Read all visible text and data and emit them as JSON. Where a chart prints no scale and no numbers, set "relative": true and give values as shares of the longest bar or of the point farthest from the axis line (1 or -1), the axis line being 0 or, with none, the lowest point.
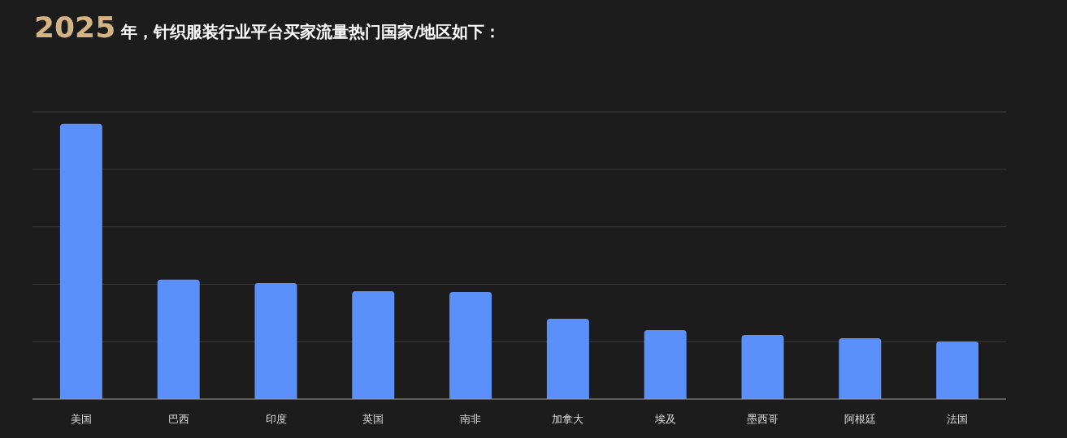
{
  "chart_data": {
    "type": "bar",
    "title": "**2025** 年，针织服装行业平台买家流量热门国家/地区如下：",
    "categories": [
      "美国",
      "巴西",
      "印度",
      "英国",
      "南非",
      "加拿大",
      "埃及",
      "墨西哥",
      "阿根廷",
      "法国"
    ],
    "values": [
      1,
      0.434,
      0.422,
      0.392,
      0.389,
      0.292,
      0.251,
      0.233,
      0.221,
      0.209
    ],
    "color": "#5b8ff9",
    "relative": true,
    "grid": "y"
  }
}
